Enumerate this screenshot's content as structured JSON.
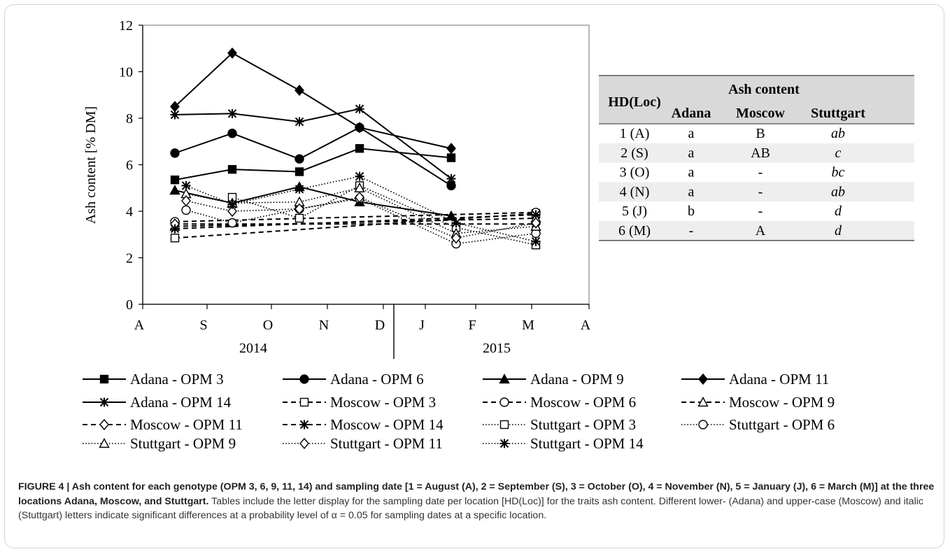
{
  "chart_data": {
    "type": "line",
    "ylabel": "Ash content [% DM]",
    "ylim": [
      0,
      12
    ],
    "yticks": [
      0,
      2,
      4,
      6,
      8,
      10,
      12
    ],
    "xticks": [
      "A",
      "S",
      "O",
      "N",
      "D",
      "J",
      "F",
      "M",
      "A"
    ],
    "year_labels": [
      "2014",
      "2015"
    ],
    "x": [
      "Aug 2014",
      "Sep 2014",
      "Oct 2014",
      "Nov 2014",
      "Jan 2015",
      "Mar 2015"
    ],
    "series": [
      {
        "name": "Adana - OPM 3",
        "location": "Adana",
        "values": [
          5.35,
          5.8,
          5.7,
          6.7,
          6.3,
          null
        ]
      },
      {
        "name": "Adana - OPM 6",
        "location": "Adana",
        "values": [
          6.5,
          7.35,
          6.25,
          7.6,
          5.1,
          null
        ]
      },
      {
        "name": "Adana - OPM 9",
        "location": "Adana",
        "values": [
          4.9,
          4.35,
          5.05,
          4.4,
          3.8,
          null
        ]
      },
      {
        "name": "Adana - OPM 11",
        "location": "Adana",
        "values": [
          8.5,
          10.8,
          9.2,
          7.6,
          6.7,
          null
        ]
      },
      {
        "name": "Adana - OPM 14",
        "location": "Adana",
        "values": [
          8.15,
          8.2,
          7.85,
          8.4,
          5.4,
          null
        ]
      },
      {
        "name": "Moscow - OPM 3",
        "location": "Moscow",
        "values": [
          2.85,
          null,
          null,
          null,
          null,
          3.9
        ]
      },
      {
        "name": "Moscow - OPM 6",
        "location": "Moscow",
        "values": [
          3.55,
          null,
          null,
          null,
          null,
          3.95
        ]
      },
      {
        "name": "Moscow - OPM 9",
        "location": "Moscow",
        "values": [
          3.35,
          null,
          null,
          null,
          null,
          3.7
        ]
      },
      {
        "name": "Moscow - OPM 11",
        "location": "Moscow",
        "values": [
          3.45,
          null,
          null,
          null,
          null,
          3.45
        ]
      },
      {
        "name": "Moscow - OPM 14",
        "location": "Moscow",
        "values": [
          3.25,
          null,
          null,
          null,
          null,
          3.85
        ]
      },
      {
        "name": "Stuttgart - OPM 3",
        "location": "Stuttgart",
        "values": [
          null,
          4.6,
          3.7,
          5.1,
          3.3,
          2.55
        ]
      },
      {
        "name": "Stuttgart - OPM 6",
        "location": "Stuttgart",
        "values": [
          4.05,
          3.5,
          4.1,
          4.55,
          2.6,
          3.05
        ]
      },
      {
        "name": "Stuttgart - OPM 9",
        "location": "Stuttgart",
        "values": [
          4.75,
          4.35,
          4.4,
          5.0,
          3.05,
          3.35
        ]
      },
      {
        "name": "Stuttgart - OPM 11",
        "location": "Stuttgart",
        "values": [
          4.45,
          4.0,
          4.1,
          4.6,
          2.85,
          3.5
        ]
      },
      {
        "name": "Stuttgart - OPM 14",
        "location": "Stuttgart",
        "values": [
          5.1,
          4.3,
          4.95,
          5.5,
          3.5,
          2.7
        ]
      }
    ]
  },
  "legend_markers": {
    "OPM 3": "square",
    "OPM 6": "circle",
    "OPM 9": "triangle",
    "OPM 11": "diamond",
    "OPM 14": "asterisk"
  },
  "table": {
    "header_hd": "HD(Loc)",
    "header_group": "Ash content",
    "columns": [
      "Adana",
      "Moscow",
      "Stuttgart"
    ],
    "rows": [
      {
        "hd": "1 (A)",
        "adana": "a",
        "moscow": "B",
        "stuttgart": "ab"
      },
      {
        "hd": "2 (S)",
        "adana": "a",
        "moscow": "AB",
        "stuttgart": "c"
      },
      {
        "hd": "3 (O)",
        "adana": "a",
        "moscow": "-",
        "stuttgart": "bc"
      },
      {
        "hd": "4 (N)",
        "adana": "a",
        "moscow": "-",
        "stuttgart": "ab"
      },
      {
        "hd": "5 (J)",
        "adana": "b",
        "moscow": "-",
        "stuttgart": "d"
      },
      {
        "hd": "6 (M)",
        "adana": "-",
        "moscow": "A",
        "stuttgart": "d"
      }
    ]
  },
  "caption": {
    "bold": "FIGURE 4 | Ash content for each genotype (OPM 3, 6, 9, 11, 14) and sampling date [1 = August (A), 2 = September (S), 3 = October (O), 4 = November (N), 5 = January (J), 6 = March (M)] at the three locations Adana, Moscow, and Stuttgart.",
    "text": " Tables include the letter display for the sampling date per location [HD(Loc)] for the traits ash content. Different lower- (Adana) and upper-case (Moscow) and italic (Stuttgart) letters indicate significant differences at a probability level of α = 0.05 for sampling dates at a specific location."
  },
  "colors": {
    "line": "#000000",
    "table_header_bg": "#d9d9d9",
    "table_stripe_bg": "#eeeeee",
    "frame_border": "#cfd4d8",
    "caption_text": "#333333"
  }
}
